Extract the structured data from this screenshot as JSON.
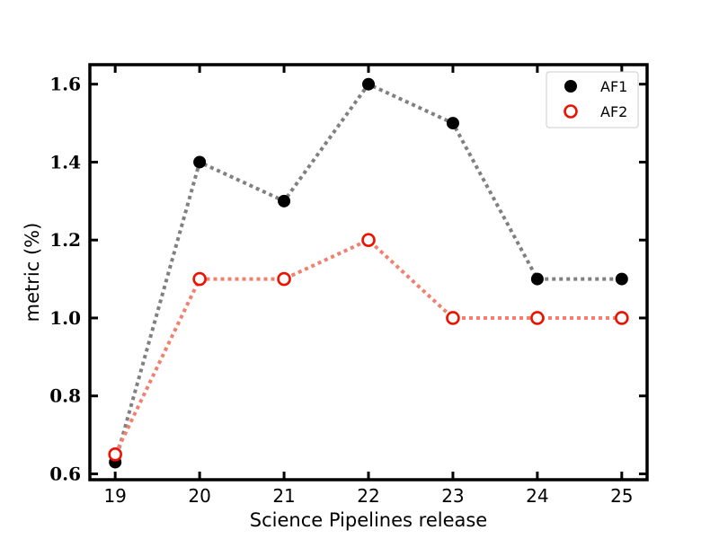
{
  "chart_data": {
    "type": "line",
    "title": "",
    "xlabel": "Science Pipelines release",
    "ylabel": "metric (%)",
    "x": [
      19,
      20,
      21,
      22,
      23,
      24,
      25
    ],
    "x_tick_labels": [
      "19",
      "20",
      "21",
      "22",
      "23",
      "24",
      "25"
    ],
    "y_tick_labels": [
      "0.6",
      "0.8",
      "1.0",
      "1.2",
      "1.4",
      "1.6"
    ],
    "y_ticks": [
      0.6,
      0.8,
      1.0,
      1.2,
      1.4,
      1.6
    ],
    "xlim": [
      18.7,
      25.3
    ],
    "ylim": [
      0.585,
      1.65
    ],
    "grid": false,
    "legend_position": "top-right",
    "series": [
      {
        "name": "AF1",
        "values": [
          0.63,
          1.4,
          1.3,
          1.6,
          1.5,
          1.1,
          1.1
        ],
        "marker": "filled-circle",
        "marker_color": "#000000",
        "line_color": "#808080",
        "line_style": "dotted"
      },
      {
        "name": "AF2",
        "values": [
          0.65,
          1.1,
          1.1,
          1.2,
          1.0,
          1.0,
          1.0
        ],
        "marker": "open-circle",
        "marker_color": "#ee1100",
        "line_color": "#f08070",
        "line_style": "dotted"
      }
    ]
  }
}
